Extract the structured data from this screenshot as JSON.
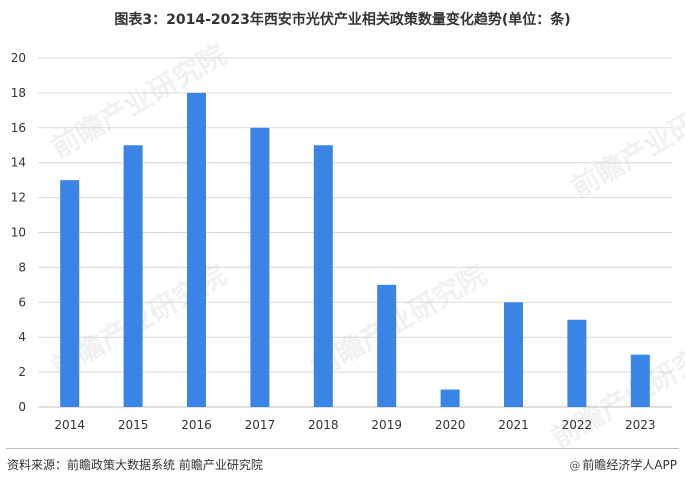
{
  "chart_data": {
    "type": "bar",
    "title": "图表3：2014-2023年西安市光伏产业相关政策数量变化趋势(单位：条)",
    "categories": [
      "2014",
      "2015",
      "2016",
      "2017",
      "2018",
      "2019",
      "2020",
      "2021",
      "2022",
      "2023"
    ],
    "values": [
      13,
      15,
      18,
      16,
      15,
      7,
      1,
      6,
      5,
      3
    ],
    "ylim": [
      0,
      20
    ],
    "yticks": [
      "0",
      "2",
      "4",
      "6",
      "8",
      "10",
      "12",
      "14",
      "16",
      "18",
      "20"
    ],
    "xlabel": "",
    "ylabel": "",
    "grid": true,
    "bar_color": "#3a84e6",
    "grid_color": "#d9d9d9"
  },
  "footer": {
    "source": "资料来源：前瞻政策大数据系统 前瞻产业研究院",
    "brand": "前瞻经济学人APP",
    "brand_icon": "weibo-icon"
  },
  "watermark": {
    "text": "前瞻产业研究院"
  }
}
